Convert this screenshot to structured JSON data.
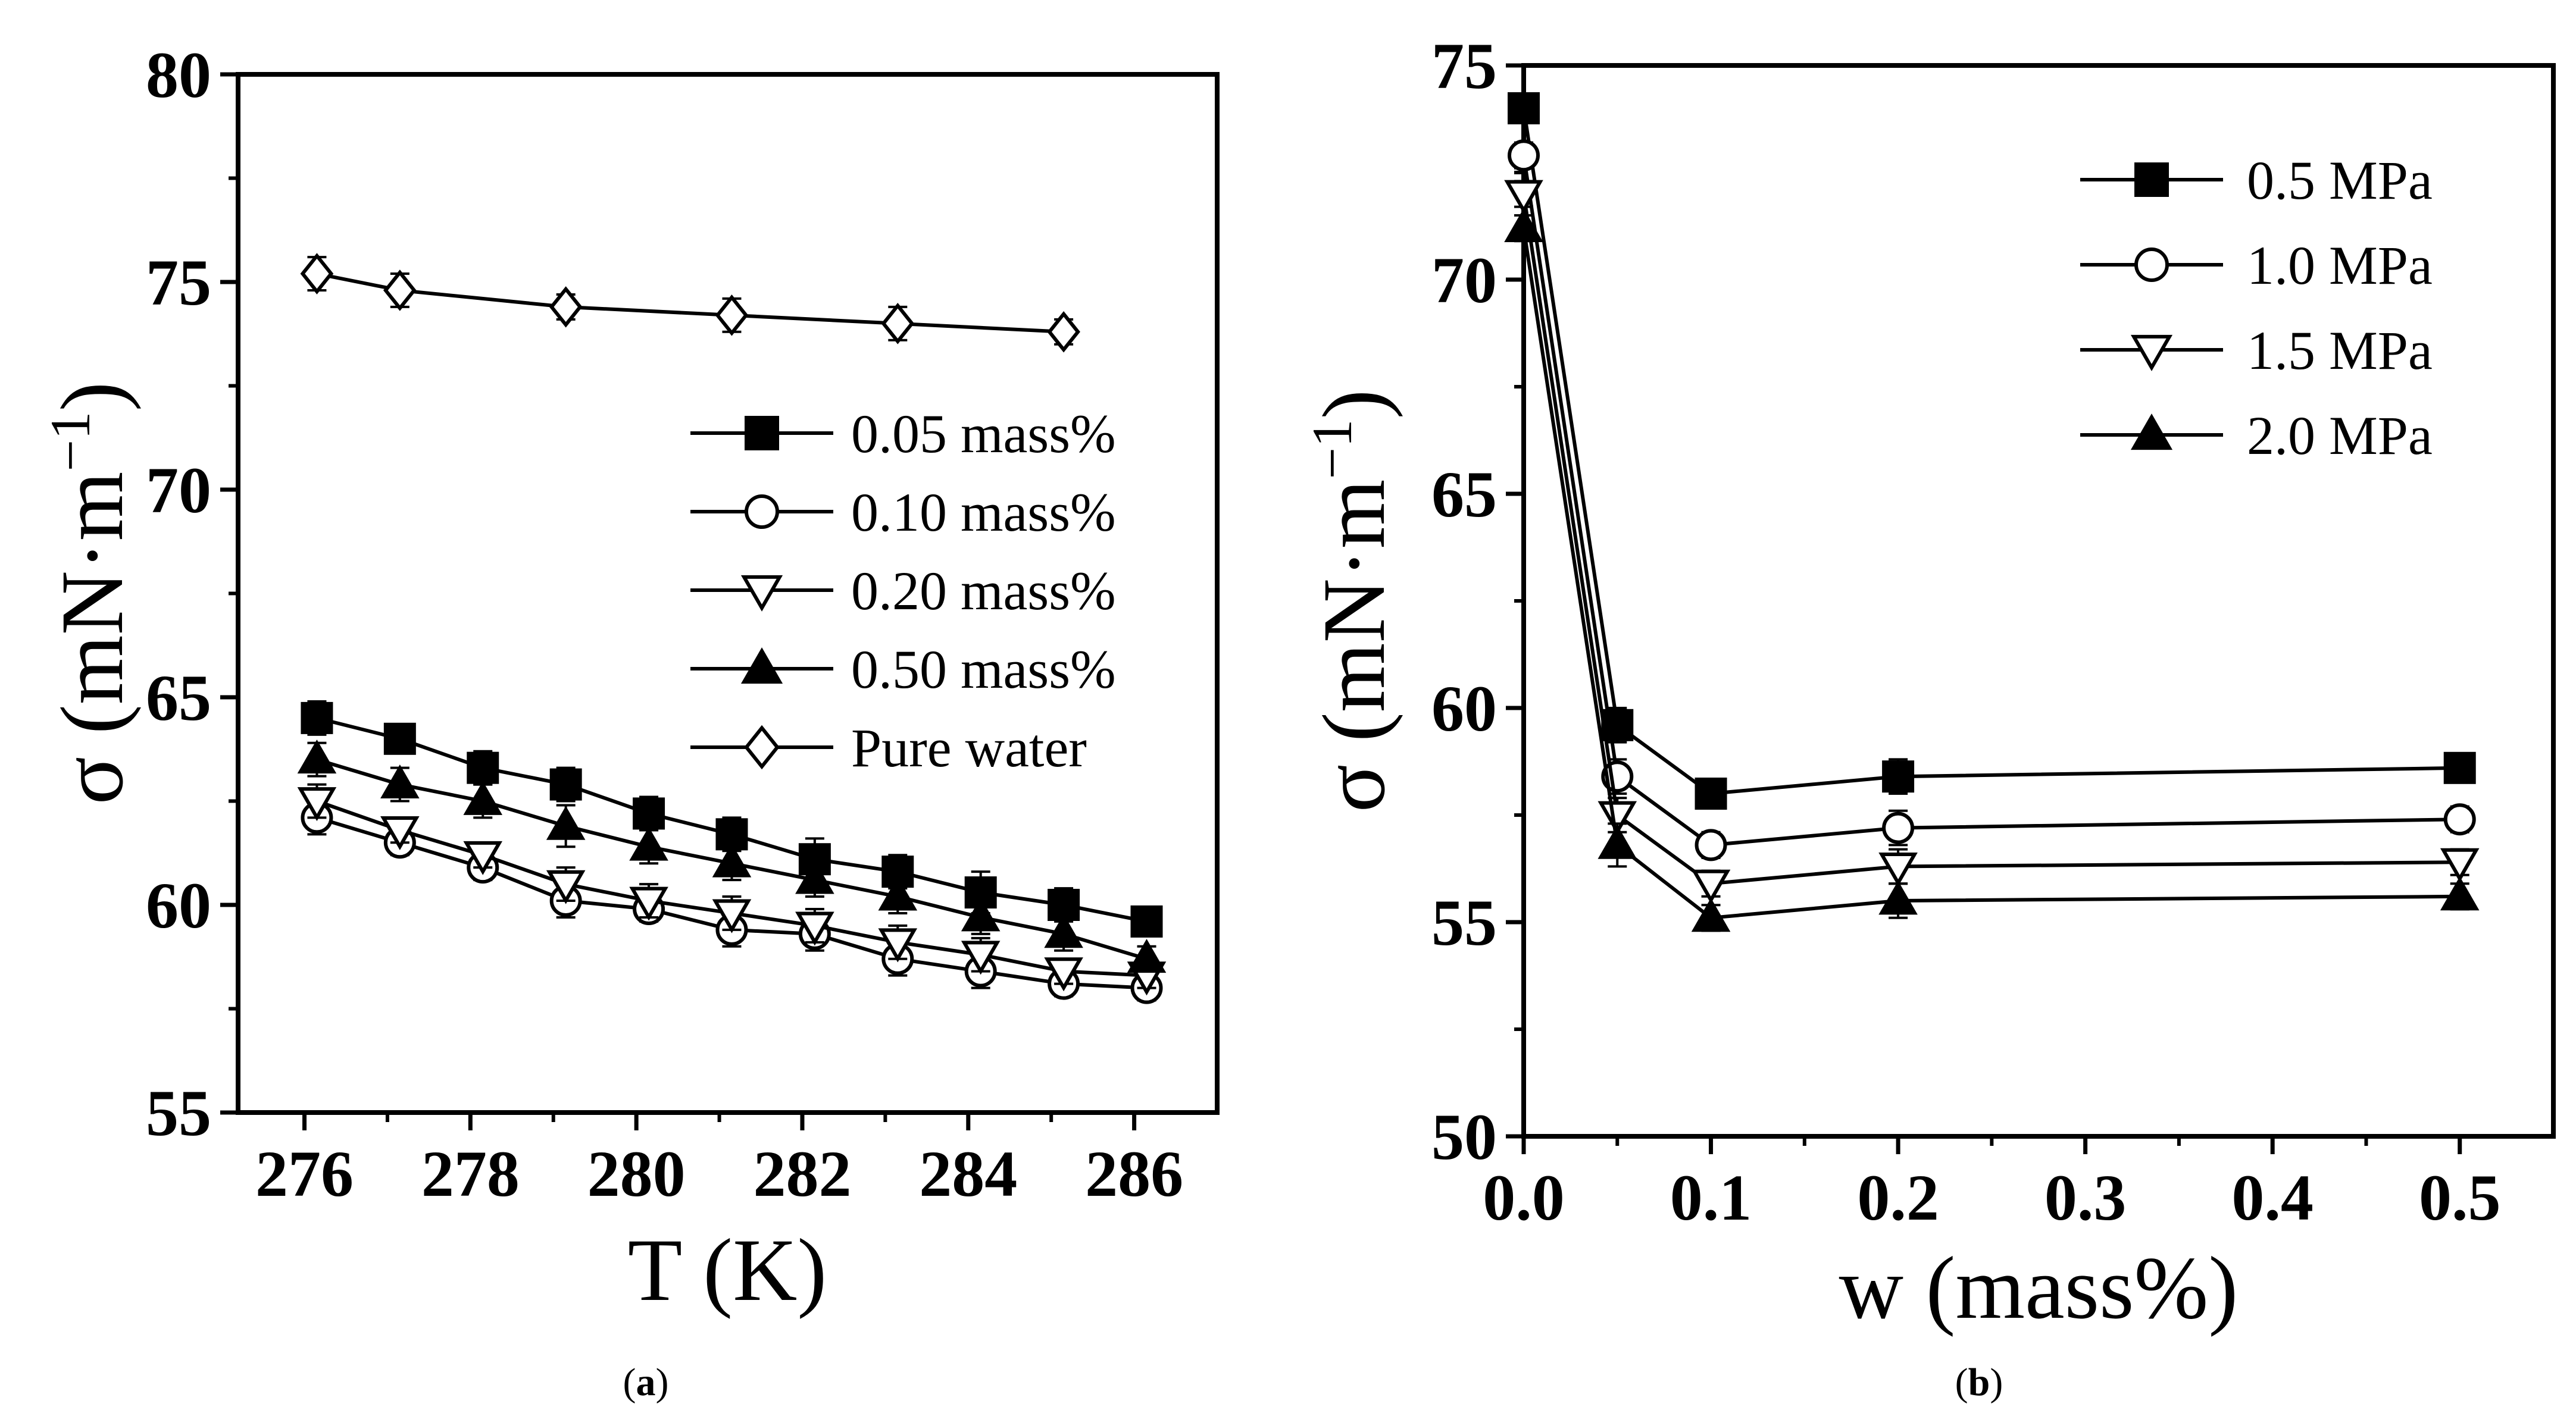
{
  "chart_data": [
    {
      "type": "line",
      "panel": "a",
      "xlabel": "T (K)",
      "ylabel_main": "σ (mN·m",
      "ylabel_exp": "−1",
      "ylabel_close": ")",
      "xlim": [
        275.2,
        287
      ],
      "ylim": [
        55,
        80
      ],
      "xticks": [
        276,
        278,
        280,
        282,
        284,
        286
      ],
      "yticks": [
        55,
        60,
        65,
        70,
        75,
        80
      ],
      "x": [
        276.15,
        277.15,
        278.15,
        279.15,
        280.15,
        281.15,
        282.15,
        283.15,
        284.15,
        285.15,
        286.15
      ],
      "series": [
        {
          "name": "0.05 mass%",
          "marker": "square",
          "fill": "black",
          "values": [
            64.5,
            64.0,
            63.3,
            62.9,
            62.2,
            61.7,
            61.1,
            60.8,
            60.3,
            60.0,
            59.6
          ],
          "err": [
            0.4,
            0.3,
            0.4,
            0.4,
            0.4,
            0.4,
            0.5,
            0.4,
            0.5,
            0.4,
            0.3
          ]
        },
        {
          "name": "0.10 mass%",
          "marker": "circle",
          "fill": "white",
          "values": [
            62.1,
            61.5,
            60.9,
            60.1,
            59.9,
            59.4,
            59.3,
            58.7,
            58.4,
            58.1,
            58.0
          ],
          "err": [
            0.4,
            0.3,
            0.3,
            0.4,
            0.3,
            0.4,
            0.4,
            0.4,
            0.4,
            0.3,
            0.3
          ]
        },
        {
          "name": "0.20 mass%",
          "marker": "triangle-down",
          "fill": "white",
          "values": [
            62.5,
            61.8,
            61.2,
            60.5,
            60.1,
            59.8,
            59.5,
            59.1,
            58.8,
            58.4,
            58.3
          ],
          "err": [
            0.4,
            0.3,
            0.3,
            0.4,
            0.4,
            0.4,
            0.4,
            0.4,
            0.4,
            0.3,
            0.3
          ]
        },
        {
          "name": "0.50 mass%",
          "marker": "triangle-up",
          "fill": "black",
          "values": [
            63.5,
            62.9,
            62.5,
            61.9,
            61.4,
            61.0,
            60.6,
            60.2,
            59.7,
            59.3,
            58.7
          ],
          "err": [
            0.4,
            0.4,
            0.4,
            0.5,
            0.4,
            0.4,
            0.4,
            0.4,
            0.4,
            0.4,
            0.3
          ]
        },
        {
          "name": "Pure water",
          "marker": "diamond",
          "fill": "white",
          "values": [
            75.2,
            74.8,
            null,
            74.4,
            null,
            74.2,
            null,
            74.0,
            null,
            73.8,
            null
          ],
          "err": [
            0.4,
            0.4,
            null,
            0.3,
            null,
            0.4,
            null,
            0.4,
            null,
            0.3,
            null
          ]
        }
      ],
      "legend_position": "upper-right",
      "caption": "(a)",
      "caption_letter": "a"
    },
    {
      "type": "line",
      "panel": "b",
      "xlabel": "w (mass%)",
      "ylabel_main": "σ (mN·m",
      "ylabel_exp": "−1",
      "ylabel_close": ")",
      "xlim": [
        0,
        0.55
      ],
      "ylim": [
        50,
        75
      ],
      "xticks": [
        0.0,
        0.1,
        0.2,
        0.3,
        0.4,
        0.5
      ],
      "xtick_labels": [
        "0.0",
        "0.1",
        "0.2",
        "0.3",
        "0.4",
        "0.5"
      ],
      "yticks": [
        50,
        55,
        60,
        65,
        70,
        75
      ],
      "x": [
        0.0,
        0.05,
        0.1,
        0.2,
        0.5
      ],
      "series": [
        {
          "name": "0.5 MPa",
          "marker": "square",
          "fill": "black",
          "values": [
            74.0,
            59.6,
            58.0,
            58.4,
            58.6
          ],
          "err": [
            0.3,
            0.4,
            0.3,
            0.4,
            0.3
          ]
        },
        {
          "name": "1.0 MPa",
          "marker": "circle",
          "fill": "white",
          "values": [
            72.9,
            58.4,
            56.8,
            57.2,
            57.4
          ],
          "err": [
            0.3,
            0.4,
            0.3,
            0.4,
            0.3
          ]
        },
        {
          "name": "1.5 MPa",
          "marker": "triangle-down",
          "fill": "white",
          "values": [
            72.0,
            57.5,
            55.9,
            56.3,
            56.4
          ],
          "err": [
            0.3,
            0.4,
            0.3,
            0.4,
            0.3
          ]
        },
        {
          "name": "2.0 MPa",
          "marker": "triangle-up",
          "fill": "black",
          "values": [
            71.2,
            56.8,
            55.1,
            55.5,
            55.6
          ],
          "err": [
            0.3,
            0.5,
            0.3,
            0.4,
            0.3
          ]
        }
      ],
      "legend_position": "upper-right",
      "caption": "(b)",
      "caption_letter": "b"
    }
  ]
}
